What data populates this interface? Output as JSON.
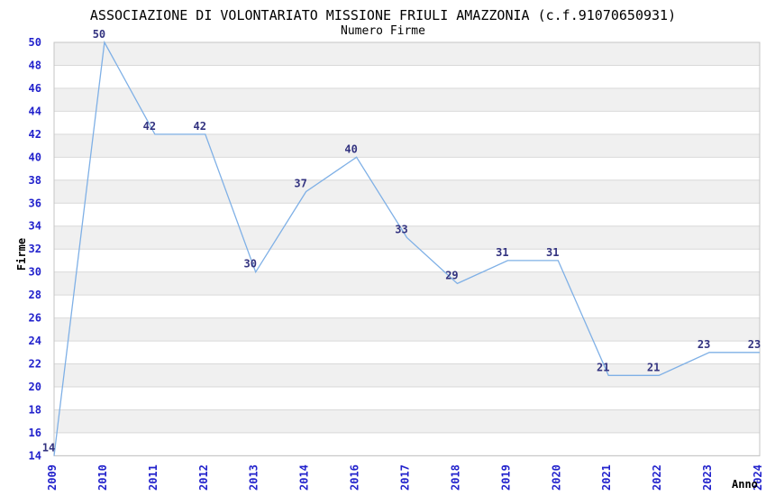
{
  "chart_data": {
    "type": "line",
    "title": "ASSOCIAZIONE DI VOLONTARIATO MISSIONE FRIULI AMAZZONIA (c.f.91070650931)",
    "subtitle": "Numero Firme",
    "xlabel": "Anno",
    "ylabel": "Firme",
    "categories": [
      "2009",
      "2010",
      "2011",
      "2012",
      "2013",
      "2014",
      "2016",
      "2017",
      "2018",
      "2019",
      "2020",
      "2021",
      "2022",
      "2023",
      "2024"
    ],
    "values": [
      14,
      50,
      42,
      42,
      30,
      37,
      40,
      33,
      29,
      31,
      31,
      21,
      21,
      23,
      23
    ],
    "ylim": [
      14,
      50
    ],
    "yticks": [
      50,
      48,
      46,
      44,
      42,
      40,
      38,
      36,
      34,
      32,
      30,
      28,
      26,
      24,
      22,
      20,
      18,
      16,
      14
    ],
    "legend": "none",
    "grid": "horizontal-bands",
    "colors": {
      "line": "#7fb0e6",
      "tick_label": "#2222cc",
      "value_label": "#333380",
      "band": "#f0f0f0",
      "band_alt": "#ffffff",
      "gridline": "#d9d9d9",
      "plot_border": "#c4c4c4",
      "text": "#000000",
      "background": "#ffffff"
    }
  }
}
